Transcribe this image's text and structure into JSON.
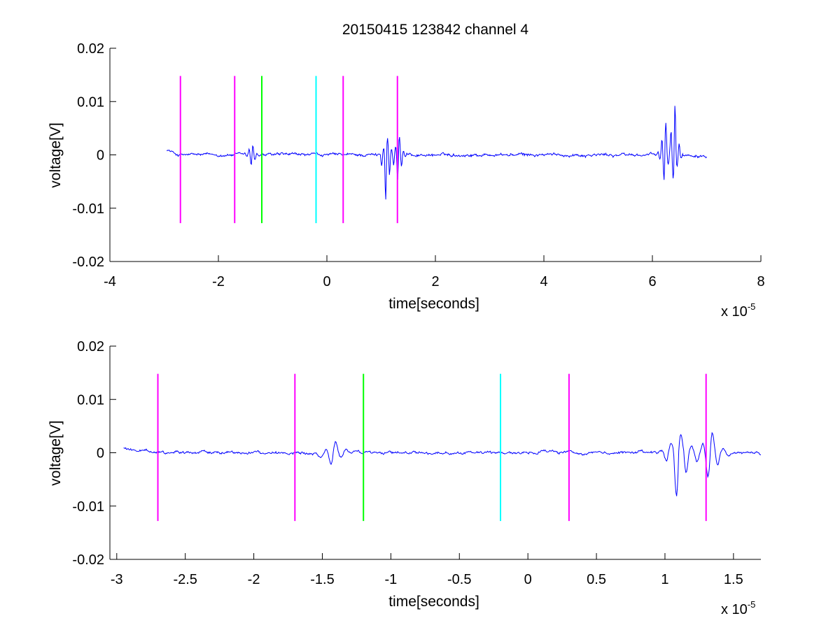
{
  "figure": {
    "title": "20150415 123842 channel 4",
    "background": "#ffffff"
  },
  "chart_data": [
    {
      "type": "line",
      "title": "20150415 123842 channel 4",
      "xlabel": "time[seconds]",
      "ylabel": "voltage[V]",
      "x_exponent_label": "x 10",
      "x_exponent": "-5",
      "xlim": [
        -4e-05,
        8e-05
      ],
      "ylim": [
        -0.02,
        0.02
      ],
      "xticks": [
        -4e-05,
        -2e-05,
        0,
        2e-05,
        4e-05,
        6e-05,
        8e-05
      ],
      "xtick_labels": [
        "-4",
        "-2",
        "0",
        "2",
        "4",
        "6",
        "8"
      ],
      "yticks": [
        0.02,
        0.01,
        0,
        -0.01,
        -0.02
      ],
      "ytick_labels": [
        "0.02",
        "0.01",
        "0",
        "-0.01",
        "-0.02"
      ],
      "grid": false,
      "series": [
        {
          "color": "#0000ff",
          "x_range": [
            -2.95e-05,
            7e-05
          ],
          "baseline": 0,
          "noise_amplitude": 0.0003,
          "bursts": [
            {
              "x": -1.38e-05,
              "peak_max": 0.0027,
              "peak_min": -0.0028
            },
            {
              "x": 1.1e-05,
              "peak_max": 0.0048,
              "peak_min": -0.0115
            },
            {
              "x": 1.32e-05,
              "peak_max": 0.005,
              "peak_min": -0.0065
            },
            {
              "x": 6.23e-05,
              "peak_max": 0.0085,
              "peak_min": -0.0065
            },
            {
              "x": 6.4e-05,
              "peak_max": 0.0135,
              "peak_min": -0.0065
            }
          ]
        }
      ],
      "markers": [
        {
          "x": -2.7e-05,
          "y_range": [
            -0.0128,
            0.0148
          ],
          "color": "#ff00ff"
        },
        {
          "x": -1.7e-05,
          "y_range": [
            -0.0128,
            0.0148
          ],
          "color": "#ff00ff"
        },
        {
          "x": -1.2e-05,
          "y_range": [
            -0.0128,
            0.0148
          ],
          "color": "#00ff00"
        },
        {
          "x": -2e-06,
          "y_range": [
            -0.0128,
            0.0148
          ],
          "color": "#00ffff"
        },
        {
          "x": 3e-06,
          "y_range": [
            -0.0128,
            0.0148
          ],
          "color": "#ff00ff"
        },
        {
          "x": 1.3e-05,
          "y_range": [
            -0.0128,
            0.0148
          ],
          "color": "#ff00ff"
        }
      ]
    },
    {
      "type": "line",
      "title": "",
      "xlabel": "time[seconds]",
      "ylabel": "voltage[V]",
      "x_exponent_label": "x 10",
      "x_exponent": "-5",
      "xlim": [
        -3.05e-05,
        1.7e-05
      ],
      "ylim": [
        -0.02,
        0.02
      ],
      "xticks": [
        -3e-05,
        -2.5e-05,
        -2e-05,
        -1.5e-05,
        -1e-05,
        -5e-06,
        0,
        5e-06,
        1e-05,
        1.5e-05
      ],
      "xtick_labels": [
        "-3",
        "-2.5",
        "-2",
        "-1.5",
        "-1",
        "-0.5",
        "0",
        "0.5",
        "1",
        "1.5"
      ],
      "yticks": [
        0.02,
        0.01,
        0,
        -0.01,
        -0.02
      ],
      "ytick_labels": [
        "0.02",
        "0.01",
        "0",
        "-0.01",
        "-0.02"
      ],
      "grid": false,
      "series": [
        {
          "color": "#0000ff",
          "x_range": [
            -2.95e-05,
            1.7e-05
          ],
          "baseline": 0,
          "noise_amplitude": 0.0003,
          "bursts": [
            {
              "x": -1.42e-05,
              "peak_max": 0.0027,
              "peak_min": -0.0028
            },
            {
              "x": 1.1e-05,
              "peak_max": 0.0048,
              "peak_min": -0.0115
            },
            {
              "x": 1.33e-05,
              "peak_max": 0.005,
              "peak_min": -0.0065
            }
          ]
        }
      ],
      "markers": [
        {
          "x": -2.7e-05,
          "y_range": [
            -0.0128,
            0.0148
          ],
          "color": "#ff00ff"
        },
        {
          "x": -1.7e-05,
          "y_range": [
            -0.0128,
            0.0148
          ],
          "color": "#ff00ff"
        },
        {
          "x": -1.2e-05,
          "y_range": [
            -0.0128,
            0.0148
          ],
          "color": "#00ff00"
        },
        {
          "x": -2e-06,
          "y_range": [
            -0.0128,
            0.0148
          ],
          "color": "#00ffff"
        },
        {
          "x": 3e-06,
          "y_range": [
            -0.0128,
            0.0148
          ],
          "color": "#ff00ff"
        },
        {
          "x": 1.3e-05,
          "y_range": [
            -0.0128,
            0.0148
          ],
          "color": "#ff00ff"
        }
      ]
    }
  ]
}
